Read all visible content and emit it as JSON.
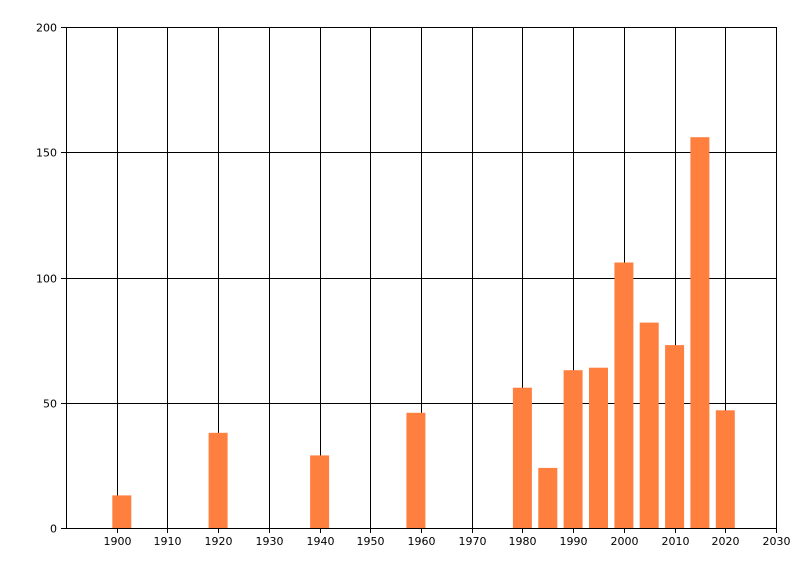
{
  "chart_data": {
    "type": "bar",
    "title": "",
    "xlabel": "",
    "ylabel": "",
    "xlim": [
      1890,
      2030
    ],
    "ylim": [
      0,
      200
    ],
    "x_ticks": [
      1900,
      1910,
      1920,
      1930,
      1940,
      1950,
      1960,
      1970,
      1980,
      1990,
      2000,
      2010,
      2020,
      2030
    ],
    "y_ticks": [
      0,
      50,
      100,
      150,
      200
    ],
    "grid": true,
    "legend": "none",
    "bar_color": "#ff7f3f",
    "grid_color": "#000000",
    "series": [
      {
        "x": [
          1901,
          1920,
          1940,
          1959,
          1980,
          1985,
          1990,
          1995,
          2000,
          2005,
          2010,
          2015,
          2020
        ],
        "values": [
          13,
          38,
          29,
          46,
          56,
          24,
          63,
          64,
          106,
          82,
          73,
          156,
          47
        ]
      }
    ]
  }
}
